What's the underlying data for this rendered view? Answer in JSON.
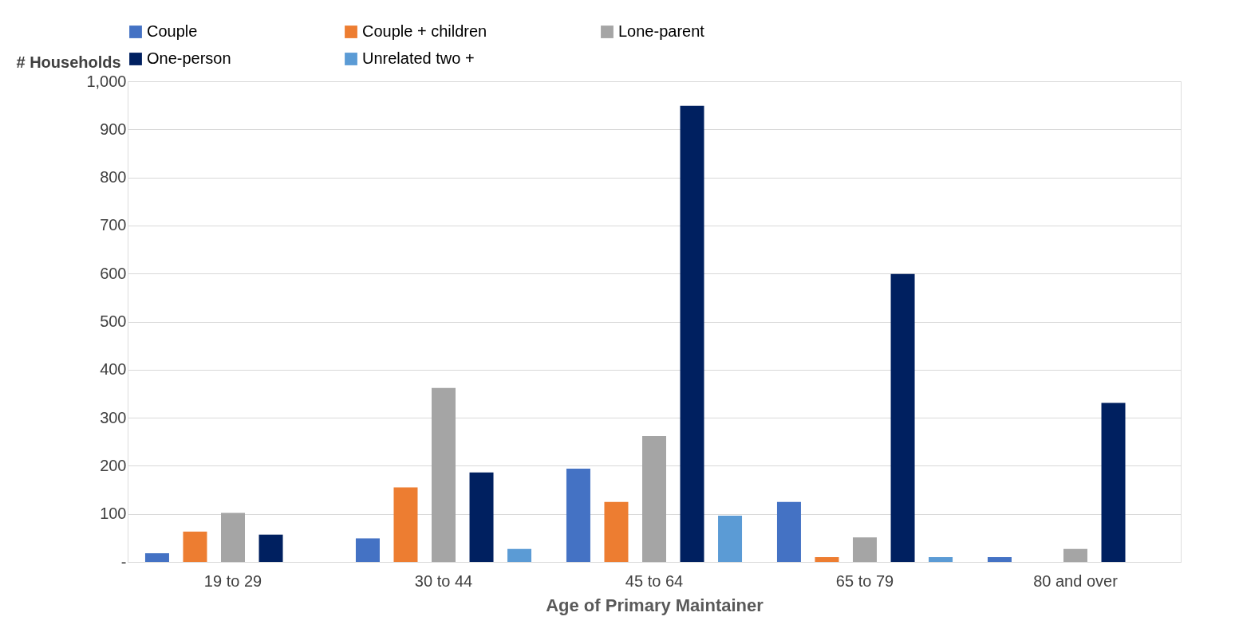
{
  "chart_data": {
    "type": "bar",
    "xlabel": "Age of Primary Maintainer",
    "ylabel": "# Households",
    "categories": [
      "19 to 29",
      "30 to 44",
      "45 to 64",
      "65 to 79",
      "80 and over"
    ],
    "series": [
      {
        "name": "Couple",
        "color": "#4472c4",
        "values": [
          18,
          49,
          194,
          125,
          10
        ]
      },
      {
        "name": "Couple + children",
        "color": "#ed7d31",
        "values": [
          63,
          155,
          125,
          10,
          0
        ]
      },
      {
        "name": "Lone-parent",
        "color": "#a5a5a5",
        "values": [
          102,
          362,
          262,
          51,
          27
        ]
      },
      {
        "name": "One-person",
        "color": "#002060",
        "values": [
          57,
          186,
          949,
          599,
          331
        ]
      },
      {
        "name": "Unrelated two +",
        "color": "#5b9bd5",
        "values": [
          0,
          27,
          96,
          10,
          0
        ]
      }
    ],
    "ylim": [
      0,
      1000
    ],
    "yticks": [
      {
        "value": 0,
        "label": "-"
      },
      100,
      200,
      300,
      400,
      500,
      600,
      700,
      800,
      900,
      {
        "value": 1000,
        "label": "1,000"
      }
    ],
    "grid": "y",
    "legend": "top"
  }
}
